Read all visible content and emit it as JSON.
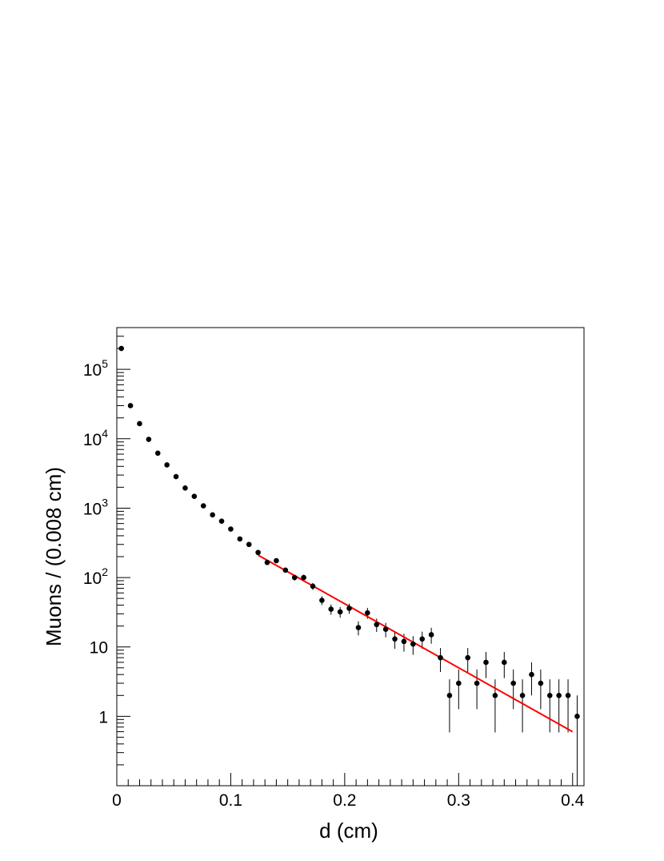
{
  "chart_data": {
    "type": "scatter",
    "title": "",
    "xlabel": "d (cm)",
    "ylabel": "Muons / (0.008 cm)",
    "xlim": [
      0,
      0.41
    ],
    "ylim": [
      0.1,
      400000
    ],
    "yscale": "log",
    "grid": false,
    "x_ticks": [
      {
        "value": 0,
        "label": "0"
      },
      {
        "value": 0.1,
        "label": "0.1"
      },
      {
        "value": 0.2,
        "label": "0.2"
      },
      {
        "value": 0.3,
        "label": "0.3"
      },
      {
        "value": 0.4,
        "label": "0.4"
      }
    ],
    "y_ticks": [
      {
        "value": 1,
        "base": "1",
        "exp": ""
      },
      {
        "value": 10,
        "base": "10",
        "exp": ""
      },
      {
        "value": 100,
        "base": "10",
        "exp": "2"
      },
      {
        "value": 1000,
        "base": "10",
        "exp": "3"
      },
      {
        "value": 10000,
        "base": "10",
        "exp": "4"
      },
      {
        "value": 100000,
        "base": "10",
        "exp": "5"
      }
    ],
    "series": [
      {
        "kind": "points_with_errors",
        "color": "#000000",
        "x": [
          0.004,
          0.012,
          0.02,
          0.028,
          0.036,
          0.044,
          0.052,
          0.06,
          0.068,
          0.076,
          0.084,
          0.092,
          0.1,
          0.108,
          0.116,
          0.124,
          0.132,
          0.14,
          0.148,
          0.156,
          0.164,
          0.172,
          0.18,
          0.188,
          0.196,
          0.204,
          0.212,
          0.22,
          0.228,
          0.236,
          0.244,
          0.252,
          0.26,
          0.268,
          0.276,
          0.284,
          0.292,
          0.3,
          0.308,
          0.316,
          0.324,
          0.332,
          0.34,
          0.348,
          0.356,
          0.364,
          0.372,
          0.38,
          0.388,
          0.396,
          0.404
        ],
        "y": [
          200000,
          30000,
          16500,
          9800,
          6200,
          4200,
          2850,
          1950,
          1480,
          1080,
          800,
          650,
          500,
          360,
          300,
          230,
          165,
          175,
          128,
          100,
          100,
          75,
          47,
          35,
          32,
          36,
          19,
          31,
          21,
          18,
          13,
          12,
          11,
          13,
          15,
          7,
          2,
          3,
          7,
          3,
          6,
          2,
          6,
          3,
          2,
          4,
          3,
          2,
          2,
          2,
          1
        ]
      },
      {
        "kind": "fit_line",
        "color": "#ff0000",
        "x": [
          0.124,
          0.4
        ],
        "y": [
          210,
          0.6
        ]
      }
    ]
  }
}
